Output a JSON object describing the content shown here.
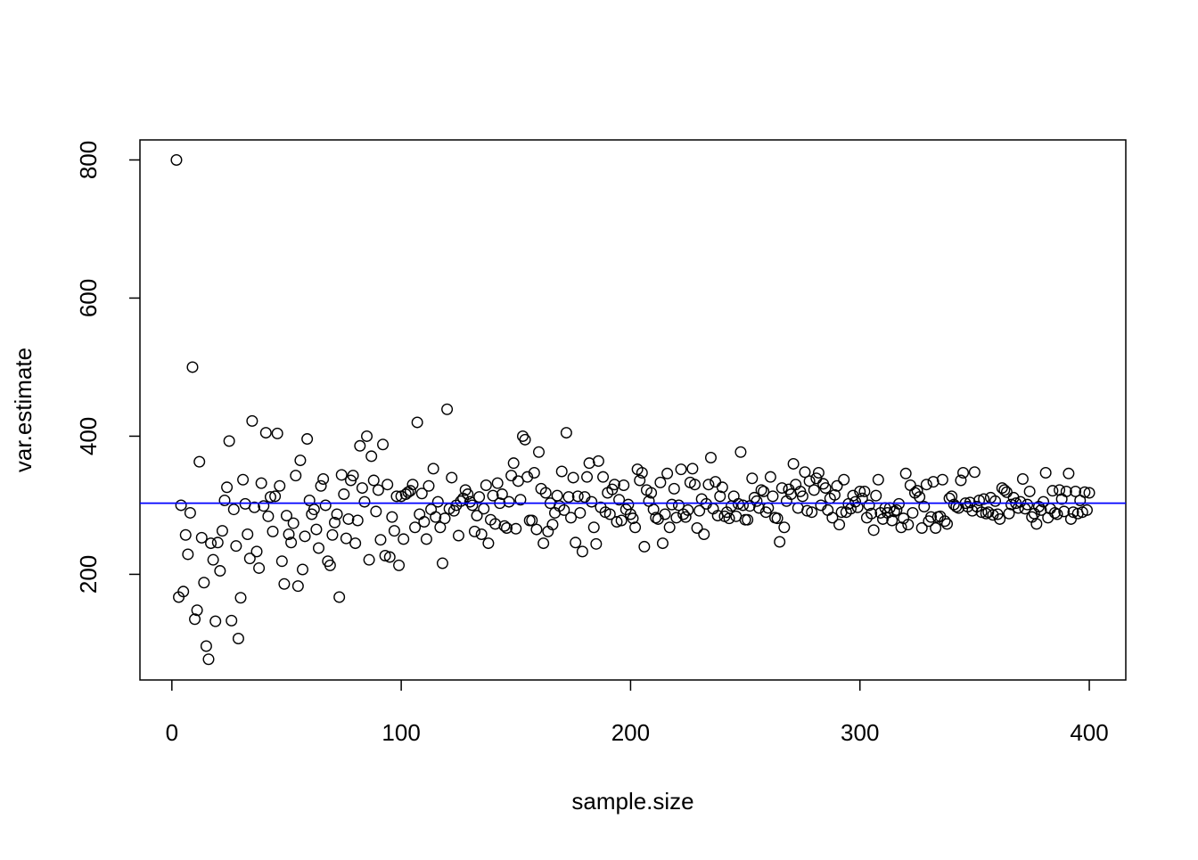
{
  "chart_data": {
    "type": "scatter",
    "xlabel": "sample.size",
    "ylabel": "var.estimate",
    "xlim": [
      -13.92,
      415.92
    ],
    "ylim": [
      47,
      829
    ],
    "xticks": [
      0,
      100,
      200,
      300,
      400
    ],
    "yticks": [
      200,
      400,
      600,
      800
    ],
    "hline": {
      "value": 303,
      "color": "#0000ff"
    },
    "series": [
      {
        "color": "#000000",
        "x": [
          2,
          3,
          4,
          5,
          6,
          7,
          8,
          9,
          10,
          11,
          12,
          13,
          14,
          15,
          16,
          17,
          18,
          19,
          20,
          21,
          22,
          23,
          24,
          25,
          26,
          27,
          28,
          29,
          30,
          31,
          32,
          33,
          34,
          35,
          36,
          37,
          38,
          39,
          40,
          41,
          42,
          43,
          44,
          45,
          46,
          47,
          48,
          49,
          50,
          51,
          52,
          53,
          54,
          55,
          56,
          57,
          58,
          59,
          60,
          61,
          62,
          63,
          64,
          65,
          66,
          67,
          68,
          69,
          70,
          71,
          72,
          73,
          74,
          75,
          76,
          77,
          78,
          79,
          80,
          81,
          82,
          83,
          84,
          85,
          86,
          87,
          88,
          89,
          90,
          91,
          92,
          93,
          94,
          95,
          96,
          97,
          98,
          99,
          100,
          101,
          102,
          103,
          104,
          105,
          106,
          107,
          108,
          109,
          110,
          111,
          112,
          113,
          114,
          115,
          116,
          117,
          118,
          119,
          120,
          121,
          122,
          123,
          124,
          125,
          126,
          127,
          128,
          129,
          130,
          131,
          132,
          133,
          134,
          135,
          136,
          137,
          138,
          139,
          140,
          141,
          142,
          143,
          144,
          145,
          146,
          147,
          148,
          149,
          150,
          151,
          152,
          153,
          154,
          155,
          156,
          157,
          158,
          159,
          160,
          161,
          162,
          163,
          164,
          165,
          166,
          167,
          168,
          169,
          170,
          171,
          172,
          173,
          174,
          175,
          176,
          177,
          178,
          179,
          180,
          181,
          182,
          183,
          184,
          185,
          186,
          187,
          188,
          189,
          190,
          191,
          192,
          193,
          194,
          195,
          196,
          197,
          198,
          199,
          200,
          201,
          202,
          203,
          204,
          205,
          206,
          207,
          208,
          209,
          210,
          211,
          212,
          213,
          214,
          215,
          216,
          217,
          218,
          219,
          220,
          221,
          222,
          223,
          224,
          225,
          226,
          227,
          228,
          229,
          230,
          231,
          232,
          233,
          234,
          235,
          236,
          237,
          238,
          239,
          240,
          241,
          242,
          243,
          244,
          245,
          246,
          247,
          248,
          249,
          250,
          251,
          252,
          253,
          254,
          255,
          256,
          257,
          258,
          259,
          260,
          261,
          262,
          263,
          264,
          265,
          266,
          267,
          268,
          269,
          270,
          271,
          272,
          273,
          274,
          275,
          276,
          277,
          278,
          279,
          280,
          281,
          282,
          283,
          284,
          285,
          286,
          287,
          288,
          289,
          290,
          291,
          292,
          293,
          294,
          295,
          296,
          297,
          298,
          299,
          300,
          301,
          302,
          303,
          304,
          305,
          306,
          307,
          308,
          309,
          310,
          311,
          312,
          313,
          314,
          315,
          316,
          317,
          318,
          319,
          320,
          321,
          322,
          323,
          324,
          325,
          326,
          327,
          328,
          329,
          330,
          331,
          332,
          333,
          334,
          335,
          336,
          337,
          338,
          339,
          340,
          341,
          342,
          343,
          344,
          345,
          346,
          347,
          348,
          349,
          350,
          351,
          352,
          353,
          354,
          355,
          356,
          357,
          358,
          359,
          360,
          361,
          362,
          363,
          364,
          365,
          366,
          367,
          368,
          369,
          370,
          371,
          372,
          373,
          374,
          375,
          376,
          377,
          378,
          379,
          380,
          381,
          382,
          383,
          384,
          385,
          386,
          387,
          388,
          389,
          390,
          391,
          392,
          393,
          394,
          395,
          396,
          397,
          398,
          399,
          400
        ],
        "values": [
          800,
          167,
          300,
          175,
          257,
          229,
          289,
          500,
          135,
          148,
          363,
          253,
          188,
          96,
          77,
          245,
          221,
          132,
          246,
          205,
          263,
          307,
          326,
          393,
          133,
          294,
          241,
          107,
          166,
          337,
          302,
          258,
          223,
          422,
          297,
          233,
          209,
          332,
          299,
          405,
          284,
          312,
          262,
          313,
          404,
          328,
          219,
          186,
          285,
          258,
          246,
          274,
          343,
          183,
          365,
          207,
          255,
          396,
          307,
          287,
          294,
          265,
          238,
          328,
          338,
          300,
          219,
          213,
          257,
          275,
          287,
          167,
          344,
          316,
          252,
          280,
          336,
          343,
          245,
          278,
          386,
          325,
          305,
          400,
          221,
          371,
          336,
          291,
          322,
          250,
          388,
          227,
          330,
          225,
          283,
          263,
          313,
          213,
          313,
          251,
          316,
          319,
          321,
          330,
          268,
          420,
          287,
          317,
          276,
          251,
          328,
          294,
          353,
          283,
          305,
          268,
          216,
          281,
          439,
          295,
          340,
          292,
          300,
          256,
          306,
          310,
          322,
          316,
          305,
          300,
          262,
          285,
          312,
          258,
          295,
          329,
          245,
          279,
          314,
          273,
          332,
          303,
          316,
          270,
          267,
          305,
          343,
          361,
          266,
          335,
          308,
          400,
          395,
          341,
          278,
          278,
          347,
          265,
          377,
          324,
          245,
          318,
          262,
          303,
          272,
          289,
          314,
          299,
          349,
          293,
          405,
          312,
          282,
          340,
          246,
          313,
          289,
          233,
          312,
          341,
          361,
          305,
          268,
          244,
          364,
          297,
          341,
          290,
          318,
          287,
          323,
          330,
          276,
          308,
          278,
          329,
          294,
          301,
          287,
          281,
          268,
          352,
          336,
          347,
          240,
          322,
          306,
          318,
          294,
          282,
          280,
          333,
          245,
          287,
          346,
          268,
          301,
          324,
          282,
          300,
          352,
          287,
          283,
          293,
          333,
          353,
          330,
          267,
          292,
          309,
          258,
          302,
          330,
          369,
          295,
          334,
          285,
          313,
          326,
          284,
          290,
          281,
          299,
          313,
          284,
          302,
          377,
          300,
          279,
          279,
          299,
          339,
          311,
          306,
          296,
          322,
          320,
          290,
          296,
          341,
          313,
          282,
          281,
          247,
          325,
          268,
          306,
          323,
          316,
          360,
          330,
          296,
          320,
          313,
          348,
          292,
          335,
          290,
          322,
          339,
          347,
          300,
          331,
          325,
          293,
          310,
          282,
          315,
          328,
          272,
          290,
          337,
          290,
          302,
          295,
          314,
          305,
          297,
          320,
          310,
          320,
          282,
          300,
          288,
          264,
          314,
          337,
          289,
          280,
          296,
          289,
          296,
          278,
          291,
          293,
          302,
          268,
          281,
          346,
          272,
          329,
          289,
          318,
          321,
          312,
          267,
          298,
          330,
          277,
          283,
          334,
          267,
          283,
          284,
          337,
          277,
          273,
          310,
          313,
          301,
          298,
          296,
          336,
          347,
          303,
          298,
          304,
          292,
          348,
          298,
          307,
          290,
          309,
          288,
          290,
          311,
          286,
          306,
          287,
          280,
          325,
          322,
          319,
          288,
          301,
          311,
          303,
          296,
          305,
          338,
          295,
          301,
          320,
          283,
          288,
          273,
          298,
          293,
          305,
          347,
          282,
          295,
          321,
          289,
          287,
          322,
          309,
          291,
          320,
          346,
          280,
          290,
          320,
          288,
          307,
          290,
          319,
          293,
          318
        ]
      }
    ]
  }
}
